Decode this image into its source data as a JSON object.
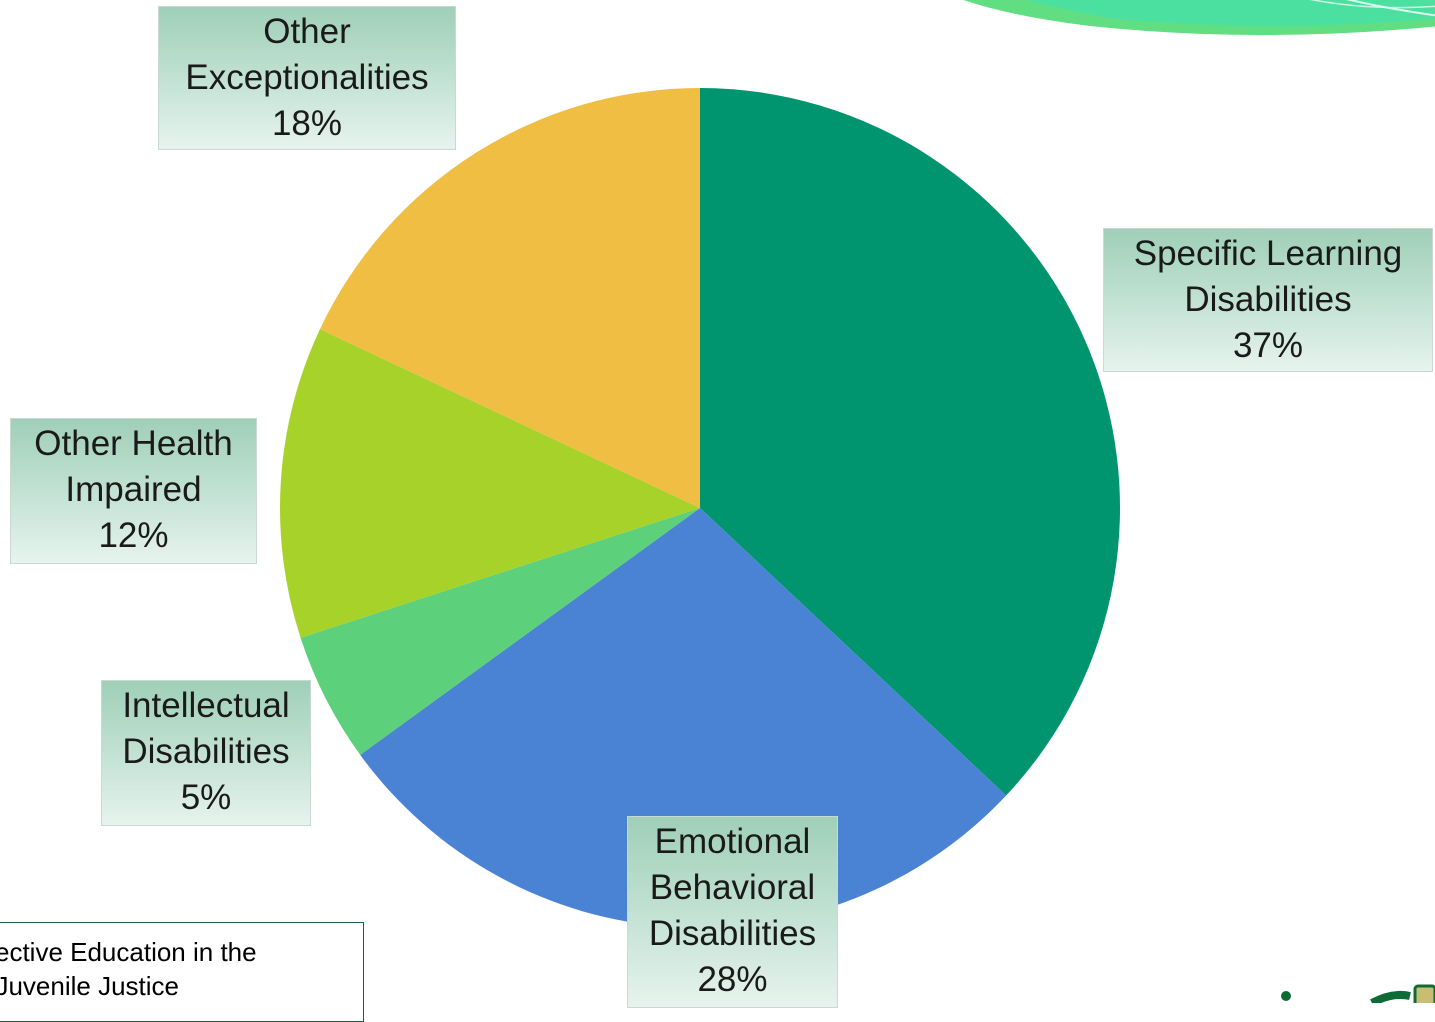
{
  "chart_data": {
    "type": "pie",
    "slices": [
      {
        "label": [
          "Specific Learning",
          "Disabilities"
        ],
        "value": 37,
        "value_label": "37%",
        "color": "#00956f"
      },
      {
        "label": [
          "Emotional",
          "Behavioral",
          "Disabilities"
        ],
        "value": 28,
        "value_label": "28%",
        "color": "#4a83d4"
      },
      {
        "label": [
          "Intellectual",
          "Disabilities"
        ],
        "value": 5,
        "value_label": "5%",
        "color": "#5cd07a"
      },
      {
        "label": [
          "Other Health",
          "Impaired"
        ],
        "value": 12,
        "value_label": "12%",
        "color": "#a6d22a"
      },
      {
        "label": [
          "Other",
          "Exceptionalities"
        ],
        "value": 18,
        "value_label": "18%",
        "color": "#f0be42"
      }
    ],
    "start": "12 o'clock",
    "direction": "clockwise",
    "legend": "none"
  },
  "note": {
    "lines": [
      "ffective Education in the",
      "f Juvenile Justice"
    ]
  },
  "colors": {
    "banner_green": "#62de82",
    "banner_teal": "#3fe0b0",
    "logo_green": "#0e6b35",
    "note_border": "#1e5e3c"
  },
  "icons": {
    "banner": "decorative-wave-banner",
    "logo": "organization-logo-fragment"
  }
}
